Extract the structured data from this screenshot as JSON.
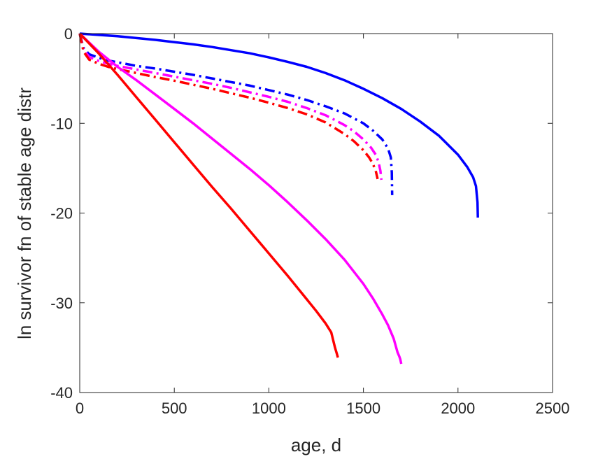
{
  "chart_data": {
    "type": "line",
    "xlabel": "age, d",
    "ylabel": "ln survivor fn of stable age distr",
    "xlim": [
      0,
      2500
    ],
    "ylim": [
      -40,
      0
    ],
    "xticks": [
      0,
      500,
      1000,
      1500,
      2000,
      2500
    ],
    "yticks": [
      0,
      -10,
      -20,
      -30,
      -40
    ],
    "xtick_labels": [
      "0",
      "500",
      "1000",
      "1500",
      "2000",
      "2500"
    ],
    "ytick_labels": [
      "0",
      "-10",
      "-20",
      "-30",
      "-40"
    ],
    "grid": false,
    "legend": "none",
    "series": [
      {
        "color": "#0000ff",
        "style": "solid",
        "x": [
          0,
          100,
          200,
          300,
          400,
          500,
          600,
          700,
          800,
          900,
          1000,
          1100,
          1200,
          1300,
          1400,
          1500,
          1600,
          1700,
          1800,
          1900,
          2000,
          2050,
          2080,
          2095,
          2103,
          2105
        ],
        "y": [
          0,
          -0.15,
          -0.3,
          -0.5,
          -0.7,
          -0.95,
          -1.2,
          -1.5,
          -1.85,
          -2.2,
          -2.65,
          -3.15,
          -3.7,
          -4.4,
          -5.2,
          -6.15,
          -7.2,
          -8.4,
          -9.8,
          -11.4,
          -13.5,
          -14.9,
          -16.0,
          -17.0,
          -18.8,
          -20.5
        ]
      },
      {
        "color": "#0000ff",
        "style": "dashdot",
        "x": [
          0,
          20,
          50,
          100,
          150,
          200,
          300,
          400,
          500,
          600,
          700,
          800,
          900,
          1000,
          1100,
          1200,
          1300,
          1400,
          1500,
          1550,
          1600,
          1630,
          1645,
          1650,
          1652
        ],
        "y": [
          0,
          -1.6,
          -2.3,
          -2.7,
          -3.0,
          -3.2,
          -3.6,
          -3.9,
          -4.25,
          -4.6,
          -5.0,
          -5.4,
          -5.8,
          -6.3,
          -6.8,
          -7.4,
          -8.1,
          -8.9,
          -10.0,
          -10.8,
          -11.8,
          -12.8,
          -13.8,
          -15.5,
          -18.0
        ]
      },
      {
        "color": "#ff00ff",
        "style": "dashdot",
        "x": [
          0,
          20,
          50,
          100,
          150,
          200,
          300,
          400,
          500,
          600,
          700,
          800,
          900,
          1000,
          1100,
          1200,
          1300,
          1400,
          1450,
          1500,
          1540,
          1565,
          1580,
          1590,
          1595
        ],
        "y": [
          0,
          -1.8,
          -2.6,
          -3.05,
          -3.35,
          -3.6,
          -4.0,
          -4.4,
          -4.8,
          -5.2,
          -5.6,
          -6.05,
          -6.55,
          -7.05,
          -7.6,
          -8.3,
          -9.1,
          -10.2,
          -10.9,
          -11.8,
          -12.7,
          -13.5,
          -14.3,
          -15.3,
          -16.3
        ]
      },
      {
        "color": "#ff0000",
        "style": "dashdot",
        "x": [
          0,
          20,
          50,
          100,
          150,
          200,
          300,
          400,
          500,
          600,
          700,
          800,
          900,
          1000,
          1100,
          1200,
          1300,
          1400,
          1450,
          1500,
          1530,
          1550,
          1565,
          1575
        ],
        "y": [
          0,
          -2.0,
          -2.9,
          -3.35,
          -3.7,
          -3.95,
          -4.4,
          -4.85,
          -5.25,
          -5.7,
          -6.15,
          -6.65,
          -7.15,
          -7.7,
          -8.3,
          -9.0,
          -9.9,
          -11.2,
          -12.0,
          -13.0,
          -13.8,
          -14.5,
          -15.3,
          -16.2
        ]
      },
      {
        "color": "#ff00ff",
        "style": "solid",
        "x": [
          0,
          100,
          200,
          300,
          400,
          500,
          600,
          700,
          800,
          900,
          1000,
          1100,
          1200,
          1300,
          1400,
          1500,
          1550,
          1600,
          1630,
          1660,
          1680,
          1690,
          1695,
          1700
        ],
        "y": [
          0,
          -2.0,
          -3.7,
          -5.2,
          -6.8,
          -8.4,
          -10.0,
          -11.7,
          -13.4,
          -15.1,
          -16.9,
          -18.8,
          -20.8,
          -22.9,
          -25.2,
          -27.9,
          -29.5,
          -31.3,
          -32.5,
          -34.0,
          -35.5,
          -36.0,
          -36.3,
          -36.8
        ]
      },
      {
        "color": "#ff0000",
        "style": "solid",
        "x": [
          0,
          100,
          200,
          300,
          400,
          500,
          600,
          700,
          800,
          900,
          1000,
          1100,
          1200,
          1250,
          1300,
          1330,
          1350,
          1360,
          1365
        ],
        "y": [
          0,
          -2.2,
          -4.6,
          -7.1,
          -9.6,
          -12.1,
          -14.6,
          -17.1,
          -19.5,
          -22.0,
          -24.5,
          -27.0,
          -29.6,
          -30.9,
          -32.3,
          -33.3,
          -35.0,
          -35.7,
          -36.1
        ]
      }
    ]
  }
}
